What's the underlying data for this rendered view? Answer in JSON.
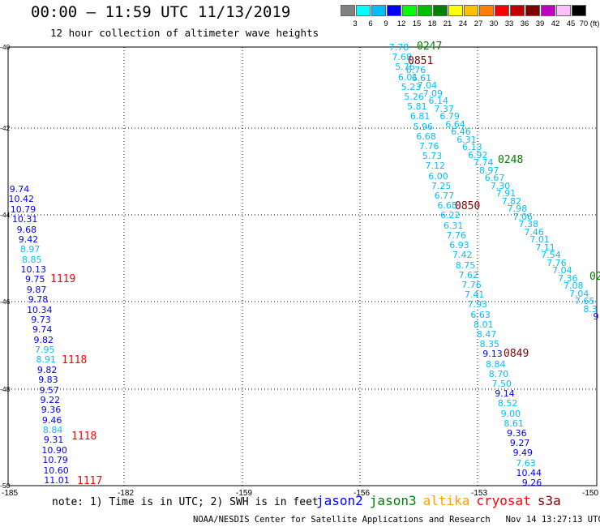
{
  "title": "00:00 – 11:59 UTC 11/13/2019",
  "subtitle": "12 hour collection of altimeter wave heights",
  "colorbar": {
    "labels": [
      "3",
      "6",
      "9",
      "12",
      "15",
      "18",
      "21",
      "24",
      "27",
      "30",
      "33",
      "36",
      "39",
      "42",
      "45",
      "70 (ft)"
    ],
    "colors": [
      "#808080",
      "#00ffff",
      "#00bfff",
      "#0000ff",
      "#00ff00",
      "#00c000",
      "#008000",
      "#ffff00",
      "#ffc000",
      "#ff8000",
      "#ff0000",
      "#c00000",
      "#800000",
      "#c000c0",
      "#ffc0ff",
      "#000000"
    ]
  },
  "map": {
    "lon_ticks": [
      "-185",
      "-182",
      "-159",
      "-156",
      "-153",
      "-150"
    ],
    "lat_ticks": [
      "-40",
      "-42",
      "-44",
      "-46",
      "-48",
      "-50"
    ]
  },
  "tracks": [
    {
      "points": [
        {
          "v": "7.78",
          "c": "#00bfff"
        },
        {
          "v": "7.68",
          "c": "#00bfff"
        },
        {
          "v": "5.76",
          "c": "#00bfff"
        },
        {
          "v": "6.01",
          "c": "#00bfff"
        },
        {
          "v": "5.23",
          "c": "#00bfff"
        },
        {
          "v": "5.26",
          "c": "#00bfff"
        },
        {
          "v": "5.81",
          "c": "#00bfff"
        },
        {
          "v": "6.81",
          "c": "#00bfff"
        },
        {
          "v": "5.96",
          "c": "#00bfff"
        },
        {
          "v": "6.68",
          "c": "#00bfff"
        },
        {
          "v": "7.76",
          "c": "#00bfff"
        },
        {
          "v": "5.73",
          "c": "#00bfff"
        },
        {
          "v": "7.12",
          "c": "#00bfff"
        },
        {
          "v": "6.00",
          "c": "#00bfff"
        },
        {
          "v": "7.25",
          "c": "#00bfff"
        },
        {
          "v": "6.77",
          "c": "#00bfff"
        },
        {
          "v": "6.68",
          "c": "#00bfff"
        },
        {
          "v": "6.22",
          "c": "#00bfff"
        },
        {
          "v": "6.31",
          "c": "#00bfff"
        },
        {
          "v": "7.76",
          "c": "#00bfff"
        },
        {
          "v": "6.93",
          "c": "#00bfff"
        },
        {
          "v": "7.42",
          "c": "#00bfff"
        },
        {
          "v": "8.75",
          "c": "#00bfff"
        },
        {
          "v": "7.62",
          "c": "#00bfff"
        },
        {
          "v": "7.76",
          "c": "#00bfff"
        },
        {
          "v": "7.41",
          "c": "#00bfff"
        },
        {
          "v": "7.93",
          "c": "#00bfff"
        },
        {
          "v": "6.63",
          "c": "#00bfff"
        },
        {
          "v": "8.01",
          "c": "#00bfff"
        },
        {
          "v": "8.47",
          "c": "#00bfff"
        },
        {
          "v": "8.35",
          "c": "#00bfff"
        },
        {
          "v": "9.13",
          "c": "#0000ff"
        },
        {
          "v": "8.84",
          "c": "#00bfff"
        },
        {
          "v": "8.70",
          "c": "#00bfff"
        },
        {
          "v": "7.50",
          "c": "#00bfff"
        },
        {
          "v": "9.14",
          "c": "#0000ff"
        },
        {
          "v": "8.52",
          "c": "#00bfff"
        },
        {
          "v": "9.00",
          "c": "#00bfff"
        },
        {
          "v": "8.61",
          "c": "#00bfff"
        },
        {
          "v": "9.36",
          "c": "#0000ff"
        },
        {
          "v": "9.27",
          "c": "#0000ff"
        },
        {
          "v": "9.49",
          "c": "#0000ff"
        },
        {
          "v": "7.63",
          "c": "#00bfff"
        },
        {
          "v": "10.44",
          "c": "#0000ff"
        },
        {
          "v": "9.26",
          "c": "#0000ff"
        }
      ]
    },
    {
      "points": [
        {
          "v": "6.76",
          "c": "#00bfff"
        },
        {
          "v": "6.61",
          "c": "#00bfff"
        },
        {
          "v": "7.04",
          "c": "#00bfff"
        },
        {
          "v": "7.09",
          "c": "#00bfff"
        },
        {
          "v": "6.14",
          "c": "#00bfff"
        },
        {
          "v": "7.37",
          "c": "#00bfff"
        },
        {
          "v": "6.79",
          "c": "#00bfff"
        },
        {
          "v": "6.64",
          "c": "#00bfff"
        },
        {
          "v": "6.46",
          "c": "#00bfff"
        },
        {
          "v": "6.31",
          "c": "#00bfff"
        },
        {
          "v": "6.13",
          "c": "#00bfff"
        },
        {
          "v": "6.92",
          "c": "#00bfff"
        },
        {
          "v": "7.74",
          "c": "#00bfff"
        },
        {
          "v": "8.97",
          "c": "#00bfff"
        },
        {
          "v": "6.67",
          "c": "#00bfff"
        },
        {
          "v": "7.30",
          "c": "#00bfff"
        },
        {
          "v": "7.91",
          "c": "#00bfff"
        },
        {
          "v": "7.82",
          "c": "#00bfff"
        },
        {
          "v": "7.98",
          "c": "#00bfff"
        },
        {
          "v": "7.06",
          "c": "#00bfff"
        },
        {
          "v": "7.38",
          "c": "#00bfff"
        },
        {
          "v": "7.46",
          "c": "#00bfff"
        },
        {
          "v": "7.01",
          "c": "#00bfff"
        },
        {
          "v": "7.11",
          "c": "#00bfff"
        },
        {
          "v": "7.54",
          "c": "#00bfff"
        },
        {
          "v": "7.76",
          "c": "#00bfff"
        },
        {
          "v": "7.04",
          "c": "#00bfff"
        },
        {
          "v": "7.36",
          "c": "#00bfff"
        },
        {
          "v": "7.08",
          "c": "#00bfff"
        },
        {
          "v": "7.04",
          "c": "#00bfff"
        },
        {
          "v": "7.65",
          "c": "#00bfff"
        },
        {
          "v": "8.3",
          "c": "#00bfff"
        },
        {
          "v": "9",
          "c": "#0000ff"
        }
      ]
    },
    {
      "points": [
        {
          "v": "9.74",
          "c": "#0000ff"
        },
        {
          "v": "10.42",
          "c": "#0000ff"
        },
        {
          "v": "10.79",
          "c": "#0000ff"
        },
        {
          "v": "10.31",
          "c": "#0000ff"
        },
        {
          "v": "9.68",
          "c": "#0000ff"
        },
        {
          "v": "9.42",
          "c": "#0000ff"
        },
        {
          "v": "8.97",
          "c": "#00bfff"
        },
        {
          "v": "8.85",
          "c": "#00bfff"
        },
        {
          "v": "10.13",
          "c": "#0000ff"
        },
        {
          "v": "9.75",
          "c": "#0000ff"
        },
        {
          "v": "9.87",
          "c": "#0000ff"
        },
        {
          "v": "9.78",
          "c": "#0000ff"
        },
        {
          "v": "10.34",
          "c": "#0000ff"
        },
        {
          "v": "9.73",
          "c": "#0000ff"
        },
        {
          "v": "9.74",
          "c": "#0000ff"
        },
        {
          "v": "9.82",
          "c": "#0000ff"
        },
        {
          "v": "7.95",
          "c": "#00bfff"
        },
        {
          "v": "8.91",
          "c": "#00bfff"
        },
        {
          "v": "9.82",
          "c": "#0000ff"
        },
        {
          "v": "9.83",
          "c": "#0000ff"
        },
        {
          "v": "9.57",
          "c": "#0000ff"
        },
        {
          "v": "9.22",
          "c": "#0000ff"
        },
        {
          "v": "9.36",
          "c": "#0000ff"
        },
        {
          "v": "9.46",
          "c": "#0000ff"
        },
        {
          "v": "8.84",
          "c": "#00bfff"
        },
        {
          "v": "9.31",
          "c": "#0000ff"
        },
        {
          "v": "10.90",
          "c": "#0000ff"
        },
        {
          "v": "10.79",
          "c": "#0000ff"
        },
        {
          "v": "10.60",
          "c": "#0000ff"
        },
        {
          "v": "11.01",
          "c": "#0000ff"
        }
      ]
    }
  ],
  "time_labels": [
    {
      "t": "0247",
      "c": "#008000"
    },
    {
      "t": "0851",
      "c": "#800000"
    },
    {
      "t": "0248",
      "c": "#008000"
    },
    {
      "t": "0850",
      "c": "#800000"
    },
    {
      "t": "0849",
      "c": "#800000"
    },
    {
      "t": "02",
      "c": "#008000"
    },
    {
      "t": "1119",
      "c": "#ff0000"
    },
    {
      "t": "1118",
      "c": "#ff0000"
    },
    {
      "t": "1118",
      "c": "#ff0000"
    },
    {
      "t": "1117",
      "c": "#ff0000"
    }
  ],
  "note": "note: 1) Time is in UTC; 2) SWH is in feet",
  "legend": [
    {
      "name": "jason2",
      "c": "#0000ff"
    },
    {
      "name": "jason3",
      "c": "#008000"
    },
    {
      "name": "altika",
      "c": "#ffa000"
    },
    {
      "name": "cryosat",
      "c": "#ff0000"
    },
    {
      "name": "s3a",
      "c": "#800000"
    }
  ],
  "credit": "NOAA/NESDIS Center for Satellite Applications and Research   Nov 14 13:27:13 UTC 2019"
}
